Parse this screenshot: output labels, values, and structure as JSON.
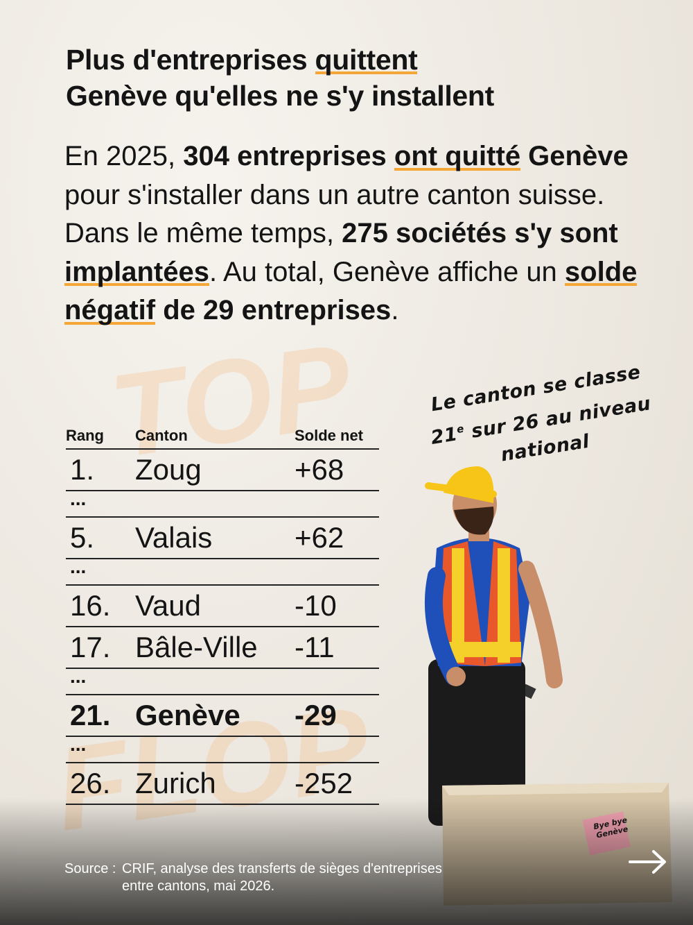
{
  "background_words": [
    "TOP",
    "FLOP"
  ],
  "title": {
    "lines": [
      [
        {
          "text": "Plus d'entreprises "
        },
        {
          "text": "quittent",
          "underline": true
        }
      ],
      [
        {
          "text": "Genève qu'elles ne s'y installent"
        }
      ]
    ]
  },
  "body": [
    {
      "text": "En 2025, "
    },
    {
      "text": "304 entreprises ",
      "bold": true
    },
    {
      "text": "ont quitté",
      "bold": true,
      "underline": true
    },
    {
      "text": " Genève",
      "bold": true
    },
    {
      "text": " pour s'installer dans un autre canton suisse. Dans le même temps, "
    },
    {
      "text": "275 sociétés s'y sont ",
      "bold": true
    },
    {
      "text": "implantées",
      "bold": true,
      "underline": true
    },
    {
      "text": ". Au total, Genève affiche un "
    },
    {
      "text": "solde négatif",
      "bold": true,
      "underline": true
    },
    {
      "text": " de 29 entreprises",
      "bold": true
    },
    {
      "text": "."
    }
  ],
  "table": {
    "header": [
      "Rang",
      "Canton",
      "Solde net"
    ],
    "rows": [
      {
        "rank": "1.",
        "canton": "Zoug",
        "net": "+68"
      },
      {
        "ellipsis": "..."
      },
      {
        "rank": "5.",
        "canton": "Valais",
        "net": "+62"
      },
      {
        "ellipsis": "..."
      },
      {
        "rank": "16.",
        "canton": "Vaud",
        "net": "-10"
      },
      {
        "rank": "17.",
        "canton": "Bâle-Ville",
        "net": "-11"
      },
      {
        "ellipsis": "..."
      },
      {
        "rank": "21.",
        "canton": "Genève",
        "net": "-29",
        "highlight": true
      },
      {
        "ellipsis": "..."
      },
      {
        "rank": "26.",
        "canton": "Zurich",
        "net": "-252"
      }
    ]
  },
  "note": {
    "line1": "Le canton se classe",
    "rank": "21",
    "rank_suffix": "e",
    "line2": "sur 26 au niveau",
    "line3": "national"
  },
  "sticky_note": "Bye bye Genève",
  "source": {
    "label": "Source :",
    "lines": [
      "CRIF, analyse des transferts de sièges d'entreprises",
      "entre cantons, mai 2026."
    ]
  }
}
